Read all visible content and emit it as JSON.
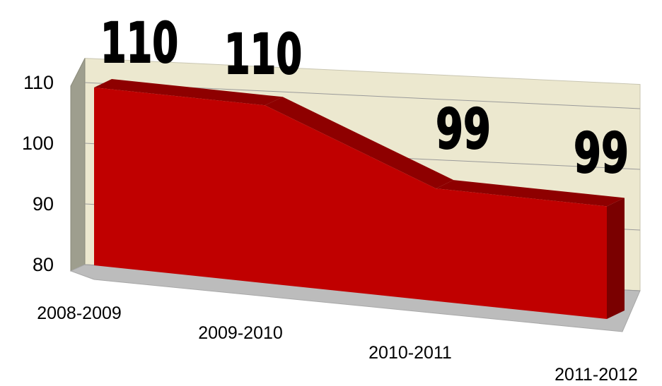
{
  "chart_data": {
    "type": "area",
    "style": "3d",
    "categories": [
      "2008-2009",
      "2009-2010",
      "2010-2011",
      "2011-2012"
    ],
    "series": [
      {
        "values": [
          110,
          110,
          99,
          99
        ],
        "color": "#c00000"
      }
    ],
    "data_labels": [
      "110",
      "110",
      "99",
      "99"
    ],
    "y_ticks": [
      "80",
      "90",
      "100",
      "110"
    ],
    "ylim": [
      80,
      114
    ],
    "grid": true,
    "legend": "none",
    "colors": {
      "area_front": "#c00000",
      "area_top": "#8e0000",
      "area_side": "#7a0000",
      "back_wall": "#ece8cf",
      "left_wall": "#9e9e8e",
      "floor": "#bcbcbc"
    }
  }
}
